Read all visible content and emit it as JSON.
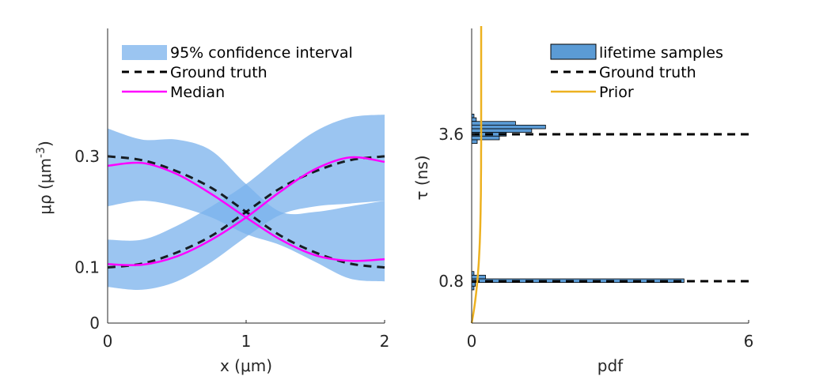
{
  "chart_data": [
    {
      "type": "line",
      "xlabel": "x (μm)",
      "ylabel_main": "μρ (μm",
      "ylabel_sup": "-3",
      "ylabel_close": ")",
      "xlim": [
        0,
        2
      ],
      "ylim": [
        0,
        0.53
      ],
      "xticks": [
        0,
        1,
        2
      ],
      "xtick_labels": [
        "0",
        "1",
        "2"
      ],
      "yticks": [
        0,
        0.1,
        0.3
      ],
      "ytick_labels": [
        "0",
        "0.1",
        "0.3"
      ],
      "legend": [
        "95% confidence interval",
        "Ground truth",
        "Median"
      ],
      "legend_position": "top",
      "x": [
        0,
        0.25,
        0.5,
        0.75,
        1.0,
        1.25,
        1.5,
        1.75,
        2.0
      ],
      "series": [
        {
          "name": "Ground truth",
          "kind": "dashed",
          "color": "#000000",
          "values": [
            0.3,
            0.293,
            0.273,
            0.243,
            0.2,
            0.157,
            0.127,
            0.107,
            0.1
          ]
        },
        {
          "name": "Ground truth",
          "kind": "dashed",
          "color": "#000000",
          "values": [
            0.1,
            0.107,
            0.127,
            0.157,
            0.2,
            0.243,
            0.273,
            0.293,
            0.3
          ]
        },
        {
          "name": "Median",
          "kind": "solid",
          "color": "#ff00ff",
          "values": [
            0.283,
            0.288,
            0.268,
            0.232,
            0.19,
            0.15,
            0.122,
            0.112,
            0.115
          ]
        },
        {
          "name": "Median",
          "kind": "solid",
          "color": "#ff00ff",
          "values": [
            0.106,
            0.105,
            0.12,
            0.15,
            0.19,
            0.237,
            0.277,
            0.298,
            0.29
          ]
        }
      ],
      "bands": [
        {
          "name": "95% confidence interval",
          "color": "#7ab1ec",
          "lower": [
            0.21,
            0.22,
            0.21,
            0.19,
            0.16,
            0.14,
            0.11,
            0.08,
            0.075
          ],
          "upper": [
            0.35,
            0.33,
            0.33,
            0.31,
            0.25,
            0.2,
            0.2,
            0.21,
            0.22
          ]
        },
        {
          "name": "95% confidence interval",
          "color": "#7ab1ec",
          "lower": [
            0.065,
            0.06,
            0.075,
            0.11,
            0.155,
            0.195,
            0.21,
            0.215,
            0.22
          ],
          "upper": [
            0.15,
            0.15,
            0.175,
            0.21,
            0.25,
            0.3,
            0.345,
            0.37,
            0.375
          ]
        }
      ]
    },
    {
      "type": "bar",
      "orientation": "horizontal",
      "xlabel": "pdf",
      "ylabel": "τ (ns)",
      "xlim": [
        0,
        6
      ],
      "xticks": [
        0,
        6
      ],
      "xtick_labels": [
        "0",
        "6"
      ],
      "yticks": [
        0.8,
        3.6
      ],
      "ytick_labels": [
        "0.8",
        "3.6"
      ],
      "legend": [
        "lifetime samples",
        "Ground truth",
        "Prior"
      ],
      "legend_position": "top-right",
      "bar_color": "#5b9bd5",
      "ground_truth": [
        0.8,
        3.6
      ],
      "histogram": [
        {
          "center": 0.95,
          "value": 0.05
        },
        {
          "center": 0.88,
          "value": 0.3
        },
        {
          "center": 0.81,
          "value": 4.6
        },
        {
          "center": 0.74,
          "value": 0.08
        },
        {
          "center": 0.67,
          "value": 0.05
        },
        {
          "center": 3.95,
          "value": 0.05
        },
        {
          "center": 3.88,
          "value": 0.1
        },
        {
          "center": 3.81,
          "value": 0.95
        },
        {
          "center": 3.74,
          "value": 1.6
        },
        {
          "center": 3.67,
          "value": 1.3
        },
        {
          "center": 3.6,
          "value": 0.75
        },
        {
          "center": 3.53,
          "value": 0.6
        },
        {
          "center": 3.46,
          "value": 0.12
        }
      ],
      "prior_color": "#edb120"
    }
  ]
}
